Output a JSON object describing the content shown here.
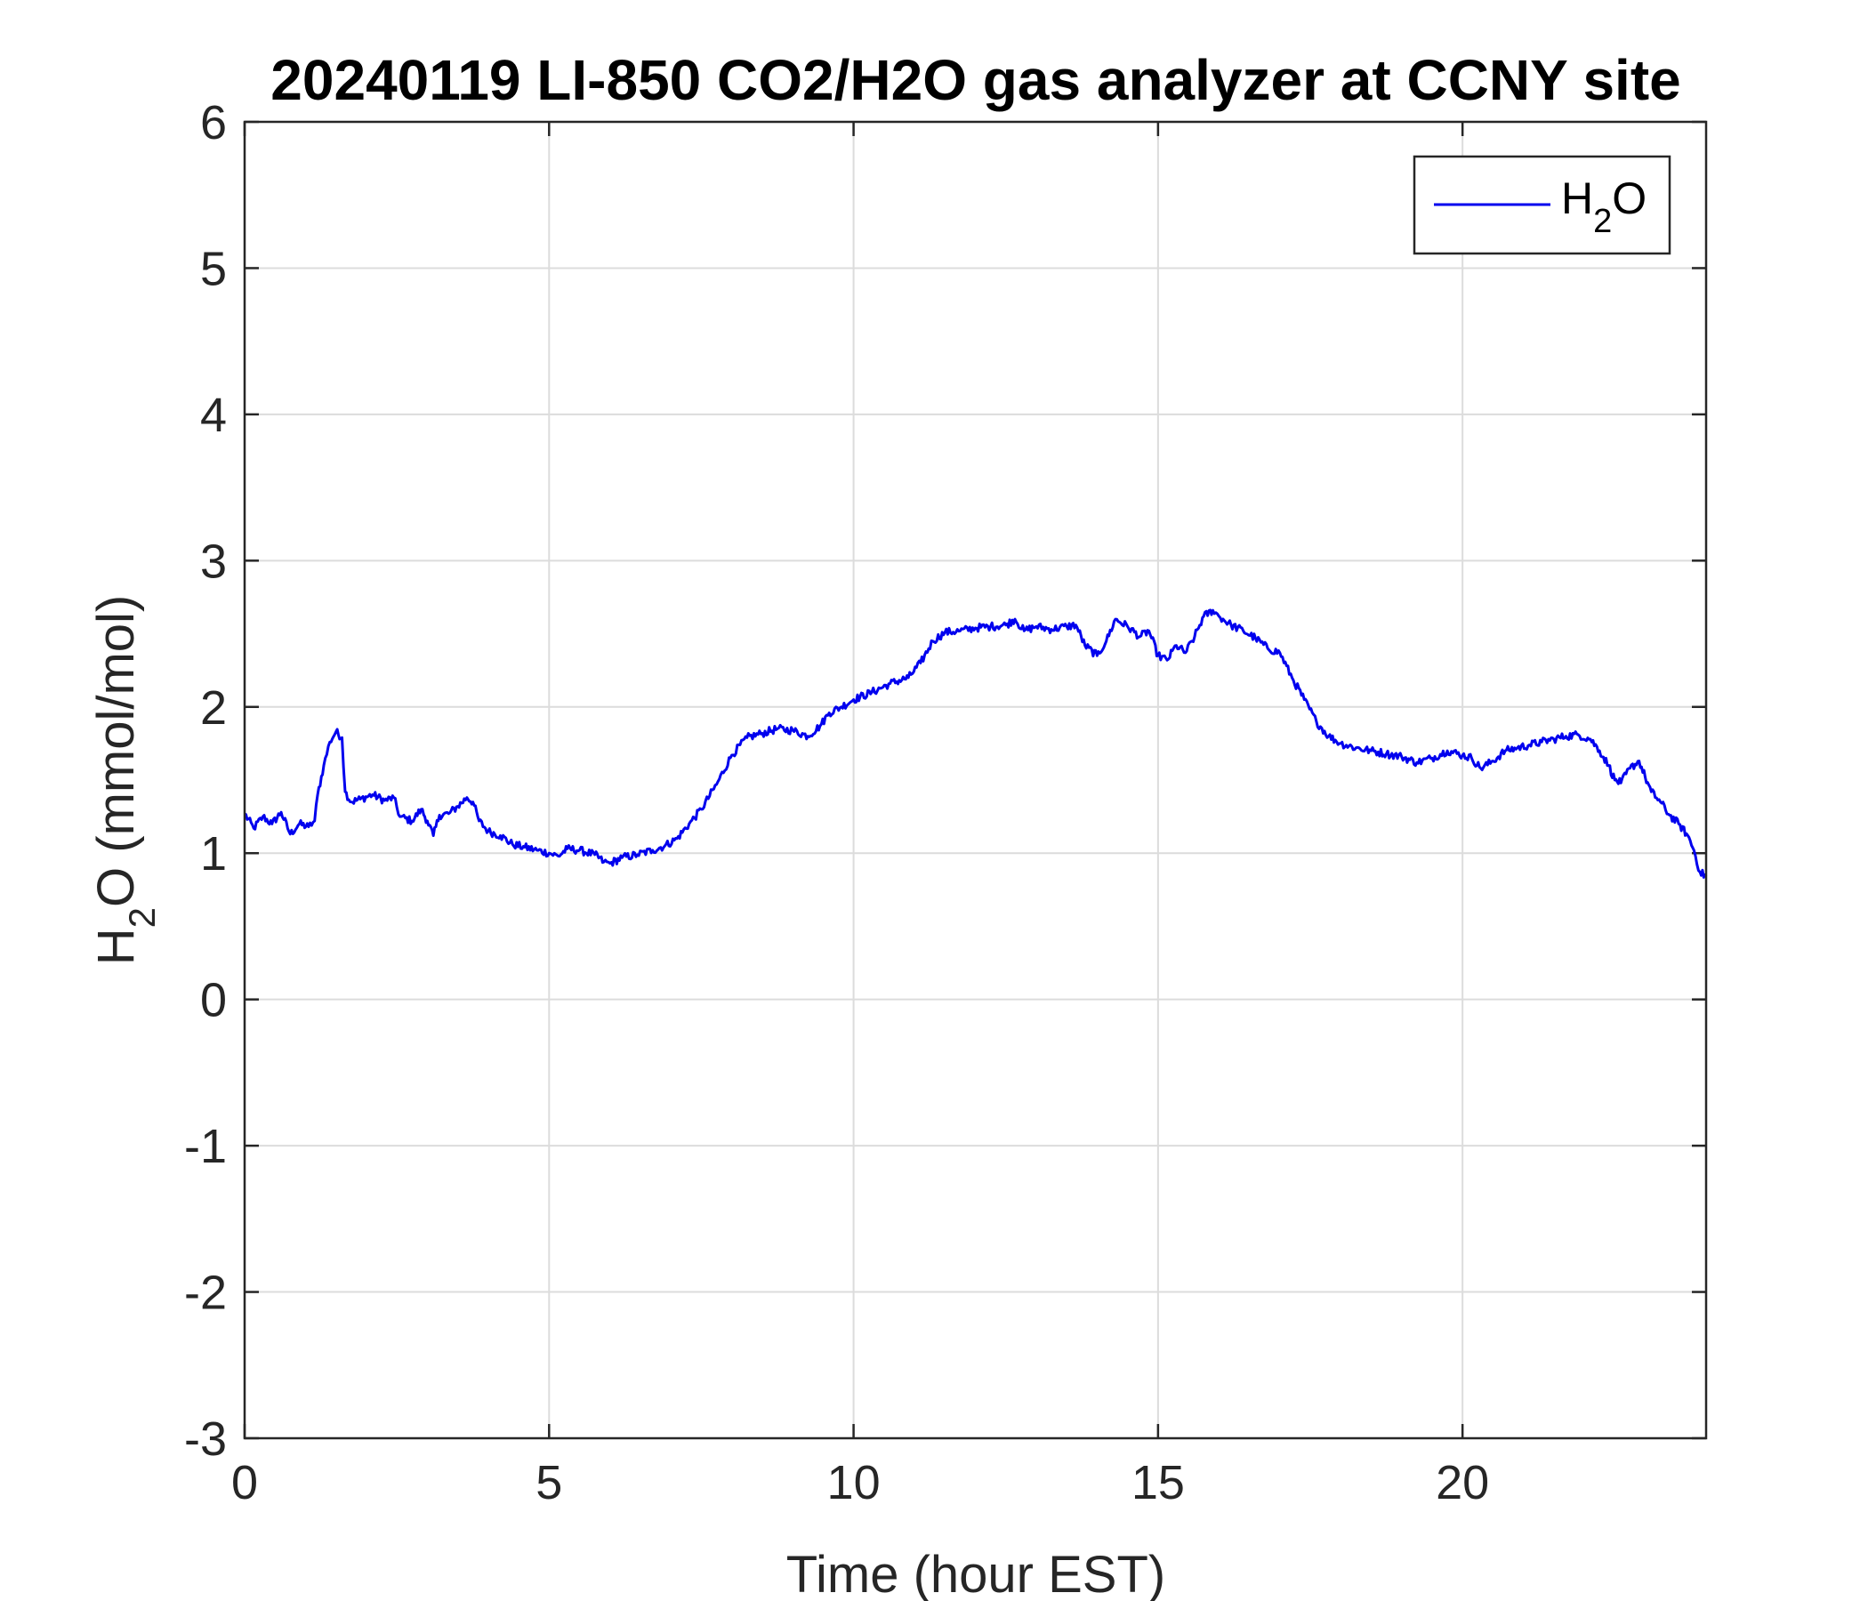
{
  "chart_data": {
    "type": "line",
    "title": "20240119 LI-850 CO2/H2O gas analyzer at CCNY site",
    "xlabel": "Time (hour EST)",
    "ylabel": "H2O (mmol/mol)",
    "ylabel_parts": {
      "base": "H",
      "subscript": "2",
      "rest": "O (mmol/mol)"
    },
    "xlim": [
      0,
      24
    ],
    "ylim": [
      -3,
      6
    ],
    "xticks": [
      0,
      5,
      10,
      15,
      20
    ],
    "yticks": [
      -3,
      -2,
      -1,
      0,
      1,
      2,
      3,
      4,
      5,
      6
    ],
    "grid": true,
    "legend_placement": "top-right",
    "series": [
      {
        "name": "H2O",
        "legend_parts": {
          "base": "H",
          "subscript": "2",
          "rest": "O"
        },
        "color": "#0000ee",
        "x": [
          0,
          0.15,
          0.3,
          0.45,
          0.6,
          0.75,
          0.9,
          1.05,
          1.15,
          1.2,
          1.3,
          1.4,
          1.5,
          1.6,
          1.65,
          1.75,
          1.9,
          2.1,
          2.3,
          2.45,
          2.55,
          2.75,
          2.9,
          3.0,
          3.1,
          3.2,
          3.35,
          3.5,
          3.65,
          3.75,
          3.85,
          4.0,
          4.2,
          4.4,
          4.6,
          4.8,
          5.0,
          5.15,
          5.3,
          5.5,
          5.75,
          5.9,
          6.0,
          6.2,
          6.45,
          6.7,
          6.9,
          7.1,
          7.3,
          7.5,
          7.75,
          8.0,
          8.25,
          8.5,
          8.75,
          9.0,
          9.25,
          9.45,
          9.6,
          9.8,
          10.0,
          10.3,
          10.6,
          10.9,
          11.1,
          11.3,
          11.5,
          11.75,
          12.0,
          12.25,
          12.5,
          12.65,
          12.8,
          13.0,
          13.25,
          13.5,
          13.65,
          13.8,
          14.0,
          14.15,
          14.3,
          14.5,
          14.7,
          14.85,
          15.0,
          15.15,
          15.3,
          15.45,
          15.6,
          15.75,
          15.9,
          16.0,
          16.2,
          16.4,
          16.6,
          16.8,
          17.0,
          17.2,
          17.4,
          17.6,
          17.8,
          18.0,
          18.25,
          18.5,
          18.75,
          19.0,
          19.25,
          19.5,
          19.75,
          20.0,
          20.15,
          20.3,
          20.5,
          20.7,
          20.9,
          21.1,
          21.3,
          21.5,
          21.7,
          21.9,
          22.1,
          22.25,
          22.4,
          22.5,
          22.6,
          22.75,
          22.9,
          23.0,
          23.1,
          23.25,
          23.4,
          23.55,
          23.7,
          23.8,
          23.9,
          24.0
        ],
        "values": [
          1.27,
          1.17,
          1.25,
          1.2,
          1.28,
          1.13,
          1.2,
          1.18,
          1.22,
          1.4,
          1.6,
          1.76,
          1.83,
          1.79,
          1.42,
          1.35,
          1.37,
          1.4,
          1.36,
          1.38,
          1.25,
          1.22,
          1.3,
          1.22,
          1.12,
          1.26,
          1.27,
          1.32,
          1.38,
          1.35,
          1.22,
          1.15,
          1.12,
          1.06,
          1.04,
          1.02,
          1.0,
          0.98,
          1.03,
          1.02,
          0.99,
          0.94,
          0.93,
          0.97,
          0.99,
          1.02,
          1.05,
          1.1,
          1.2,
          1.3,
          1.47,
          1.67,
          1.79,
          1.82,
          1.85,
          1.84,
          1.8,
          1.87,
          1.96,
          2.0,
          2.05,
          2.1,
          2.16,
          2.2,
          2.3,
          2.45,
          2.51,
          2.52,
          2.54,
          2.55,
          2.56,
          2.6,
          2.52,
          2.55,
          2.53,
          2.55,
          2.56,
          2.42,
          2.35,
          2.45,
          2.6,
          2.55,
          2.48,
          2.52,
          2.35,
          2.32,
          2.42,
          2.37,
          2.48,
          2.62,
          2.66,
          2.62,
          2.56,
          2.52,
          2.47,
          2.4,
          2.37,
          2.2,
          2.05,
          1.9,
          1.8,
          1.75,
          1.72,
          1.7,
          1.68,
          1.66,
          1.62,
          1.65,
          1.7,
          1.67,
          1.65,
          1.58,
          1.63,
          1.7,
          1.72,
          1.74,
          1.76,
          1.78,
          1.8,
          1.81,
          1.78,
          1.7,
          1.6,
          1.5,
          1.48,
          1.58,
          1.63,
          1.52,
          1.42,
          1.35,
          1.26,
          1.2,
          1.12,
          1.02,
          0.87,
          0.84
        ]
      }
    ]
  }
}
